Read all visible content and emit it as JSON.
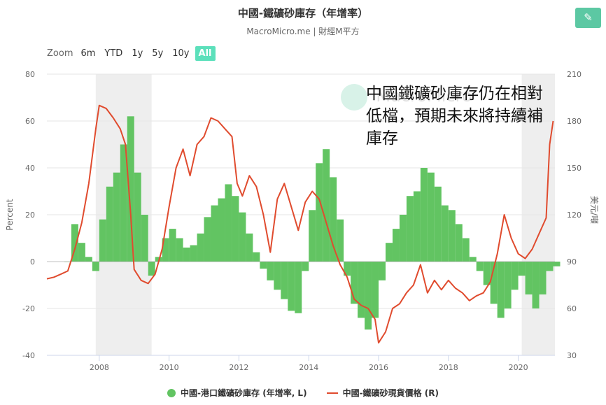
{
  "header": {
    "title": "中國-鐵礦砂庫存（年增率）",
    "subtitle": "MacroMicro.me | 財經M平方",
    "edit_icon": "pencil-icon"
  },
  "zoom": {
    "label": "Zoom",
    "buttons": [
      "6m",
      "YTD",
      "1y",
      "5y",
      "10y",
      "All"
    ],
    "active": "All"
  },
  "annotation": "中國鐵礦砂庫存仍在相對低檔，預期未來將持續補庫存",
  "watermark": "MacroMicro",
  "chart_data": {
    "type": "bar+line",
    "ylabel_left": "Percent",
    "ylabel_right": "美元/噸",
    "left_axis": {
      "ticks": [
        80,
        60,
        40,
        20,
        0,
        -20,
        -40
      ],
      "range": [
        -40,
        80
      ]
    },
    "right_axis": {
      "ticks": [
        210,
        180,
        150,
        120,
        90,
        60,
        30
      ],
      "range": [
        30,
        210
      ]
    },
    "x_axis": {
      "ticks": [
        "2008",
        "2010",
        "2012",
        "2014",
        "2016",
        "2018",
        "2020"
      ],
      "range": [
        2006.5,
        2021.05
      ]
    },
    "shaded_periods": [
      [
        2007.9,
        2009.5
      ],
      [
        2020.1,
        2021.05
      ]
    ],
    "colors": {
      "bars": "#62c462",
      "line": "#e04b2e",
      "shade": "#eeeeee"
    },
    "series": [
      {
        "name": "中國-港口鐵礦砂庫存 (年增率, L)",
        "type": "bar",
        "x": [
          2007.0,
          2007.2,
          2007.4,
          2007.6,
          2007.8,
          2008.0,
          2008.2,
          2008.4,
          2008.6,
          2008.8,
          2009.0,
          2009.2,
          2009.4,
          2009.6,
          2009.8,
          2010.0,
          2010.2,
          2010.4,
          2010.6,
          2010.8,
          2011.0,
          2011.2,
          2011.4,
          2011.6,
          2011.8,
          2012.0,
          2012.2,
          2012.4,
          2012.6,
          2012.8,
          2013.0,
          2013.2,
          2013.4,
          2013.6,
          2013.8,
          2014.0,
          2014.2,
          2014.4,
          2014.6,
          2014.8,
          2015.0,
          2015.2,
          2015.4,
          2015.6,
          2015.8,
          2016.0,
          2016.2,
          2016.4,
          2016.6,
          2016.8,
          2017.0,
          2017.2,
          2017.4,
          2017.6,
          2017.8,
          2018.0,
          2018.2,
          2018.4,
          2018.6,
          2018.8,
          2019.0,
          2019.2,
          2019.4,
          2019.6,
          2019.8,
          2020.0,
          2020.2,
          2020.4,
          2020.6,
          2020.8,
          2021.0
        ],
        "values": [
          0,
          16,
          8,
          2,
          -4,
          18,
          32,
          38,
          50,
          62,
          38,
          20,
          -6,
          2,
          10,
          14,
          10,
          6,
          7,
          12,
          19,
          24,
          27,
          33,
          28,
          21,
          12,
          4,
          -3,
          -8,
          -12,
          -16,
          -21,
          -22,
          -4,
          22,
          42,
          48,
          36,
          18,
          -6,
          -18,
          -24,
          -29,
          -24,
          -8,
          8,
          14,
          20,
          28,
          30,
          40,
          38,
          32,
          24,
          22,
          16,
          10,
          2,
          -4,
          -10,
          -18,
          -24,
          -20,
          -12,
          -6,
          -14,
          -20,
          -14,
          -4,
          -2
        ]
      },
      {
        "name": "中國-鐵礦砂現貨價格 (R)",
        "type": "line",
        "x": [
          2006.5,
          2006.7,
          2006.9,
          2007.1,
          2007.3,
          2007.5,
          2007.7,
          2007.9,
          2008.0,
          2008.2,
          2008.4,
          2008.6,
          2008.75,
          2008.9,
          2009.0,
          2009.2,
          2009.4,
          2009.6,
          2009.8,
          2010.0,
          2010.2,
          2010.4,
          2010.6,
          2010.8,
          2011.0,
          2011.2,
          2011.4,
          2011.6,
          2011.8,
          2011.95,
          2012.1,
          2012.3,
          2012.5,
          2012.7,
          2012.9,
          2013.1,
          2013.3,
          2013.5,
          2013.7,
          2013.9,
          2014.1,
          2014.3,
          2014.5,
          2014.7,
          2014.9,
          2015.1,
          2015.3,
          2015.5,
          2015.7,
          2015.9,
          2016.0,
          2016.2,
          2016.4,
          2016.6,
          2016.8,
          2017.0,
          2017.2,
          2017.4,
          2017.6,
          2017.8,
          2018.0,
          2018.2,
          2018.4,
          2018.6,
          2018.8,
          2019.0,
          2019.2,
          2019.4,
          2019.6,
          2019.8,
          2020.0,
          2020.2,
          2020.4,
          2020.6,
          2020.8,
          2020.9,
          2021.0
        ],
        "values": [
          79,
          80,
          82,
          84,
          98,
          115,
          140,
          175,
          190,
          188,
          182,
          175,
          165,
          120,
          85,
          78,
          76,
          82,
          98,
          125,
          150,
          162,
          145,
          165,
          170,
          182,
          180,
          175,
          170,
          140,
          132,
          145,
          138,
          120,
          96,
          130,
          140,
          125,
          110,
          128,
          135,
          130,
          115,
          100,
          88,
          80,
          66,
          62,
          60,
          53,
          38,
          45,
          60,
          63,
          70,
          75,
          88,
          70,
          78,
          72,
          78,
          73,
          70,
          65,
          68,
          70,
          77,
          95,
          120,
          105,
          95,
          92,
          98,
          108,
          118,
          165,
          180
        ]
      }
    ]
  }
}
